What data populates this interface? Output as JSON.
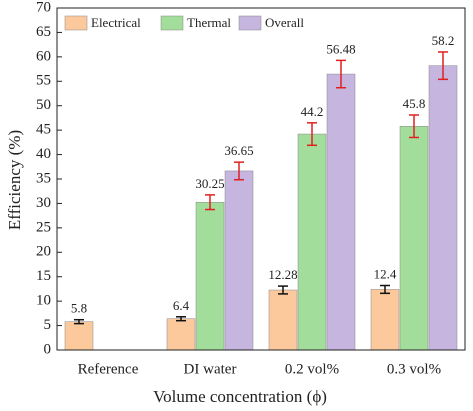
{
  "chart_data": {
    "type": "bar",
    "x_label": "Volume concentration (ϕ)",
    "y_label": "Efficiency (%)",
    "categories": [
      "Reference",
      "DI water",
      "0.2 vol%",
      "0.3 vol%"
    ],
    "series": [
      {
        "name": "Electrical",
        "color": "#fbc99c",
        "error_color": "#111111",
        "values": [
          5.8,
          6.4,
          12.28,
          12.4
        ],
        "errors": [
          0.4,
          0.4,
          0.8,
          0.8
        ]
      },
      {
        "name": "Thermal",
        "color": "#a3dd9b",
        "error_color": "#e02020",
        "values": [
          null,
          30.25,
          44.2,
          45.8
        ],
        "errors": [
          null,
          1.5,
          2.3,
          2.3
        ]
      },
      {
        "name": "Overall",
        "color": "#c5b5df",
        "error_color": "#e02020",
        "values": [
          null,
          36.65,
          56.48,
          58.2
        ],
        "errors": [
          null,
          1.8,
          2.8,
          2.8
        ]
      }
    ],
    "ylim": [
      0,
      70
    ],
    "yticks": [
      0,
      5,
      10,
      15,
      20,
      25,
      30,
      35,
      40,
      45,
      50,
      55,
      60,
      65,
      70
    ],
    "legend": "upper-left"
  }
}
